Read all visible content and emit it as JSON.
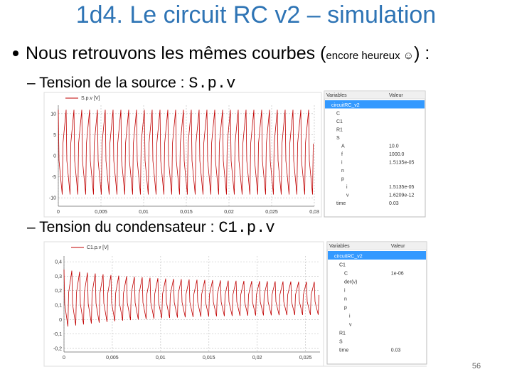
{
  "header": {
    "title": "1d4. Le circuit RC v2 – simulation"
  },
  "bullet": {
    "text": "Nous retrouvons les mêmes courbes (",
    "aside": "encore heureux ☺",
    "end": ") :"
  },
  "items": [
    {
      "text": "– Tension de la source : ",
      "code": "S.p.v",
      "plot": {
        "legend": "S.p.v [V]",
        "xlim": [
          0,
          0.03
        ],
        "ylim": [
          -12,
          12
        ],
        "yticks": [
          10,
          5,
          0,
          -5,
          -10
        ],
        "xticks": [
          0,
          {
            "value": 0.005,
            "label": "0,005"
          },
          {
            "value": 0.01,
            "label": "0,01"
          },
          {
            "value": 0.015,
            "label": "0,015"
          },
          {
            "value": 0.02,
            "label": "0,02"
          },
          {
            "value": 0.025,
            "label": "0,025"
          },
          {
            "value": 0.03,
            "label": "0,03"
          }
        ]
      },
      "panel": {
        "headers": [
          "Variables",
          "Valeur"
        ],
        "rows": [
          {
            "name": "circuitRC_v2"
          },
          {
            "name": "C"
          },
          {
            "name": "C1"
          },
          {
            "name": "R1"
          },
          {
            "name": "S"
          },
          {
            "name": "A",
            "value": "10.0"
          },
          {
            "name": "f",
            "value": "1000.0"
          },
          {
            "name": "i",
            "value": "1.5135e-05"
          },
          {
            "name": "n"
          },
          {
            "name": "p"
          },
          {
            "name": "i",
            "value": "1.5135e-05"
          },
          {
            "name": "v",
            "value": "1.6209e-12"
          },
          {
            "name": "time",
            "value": "0.03"
          }
        ]
      }
    },
    {
      "text": "– Tension du condensateur : ",
      "code": "C1.p.v",
      "plot": {
        "legend": "C1.p.v [V]",
        "xlim": [
          0,
          0.0265
        ],
        "ylim": [
          -0.225,
          0.44
        ],
        "yticks": [
          {
            "value": 0.4,
            "label": "0,4"
          },
          {
            "value": 0.3,
            "label": "0,3"
          },
          {
            "value": 0.2,
            "label": "0,2"
          },
          {
            "value": 0.1,
            "label": "0,1"
          },
          0,
          {
            "value": -0.1,
            "label": "-0,1"
          },
          {
            "value": -0.2,
            "label": "-0,2"
          }
        ],
        "xticks": [
          0,
          {
            "value": 0.005,
            "label": "0,005"
          },
          {
            "value": 0.01,
            "label": "0,01"
          },
          {
            "value": 0.015,
            "label": "0,015"
          },
          {
            "value": 0.02,
            "label": "0,02"
          },
          {
            "value": 0.025,
            "label": "0,025"
          }
        ]
      },
      "panel": {
        "headers": [
          "Variables",
          "Valeur"
        ],
        "rows": [
          {
            "name": "circuitRC_v2"
          },
          {
            "name": "C1"
          },
          {
            "name": "C",
            "value": "1e-06"
          },
          {
            "name": "der(v)"
          },
          {
            "name": "i"
          },
          {
            "name": "n"
          },
          {
            "name": "p"
          },
          {
            "name": "i"
          },
          {
            "name": "v"
          },
          {
            "name": "R1"
          },
          {
            "name": "S"
          },
          {
            "name": "time",
            "value": "0.03"
          }
        ]
      }
    }
  ],
  "footer": {
    "page": "56"
  }
}
